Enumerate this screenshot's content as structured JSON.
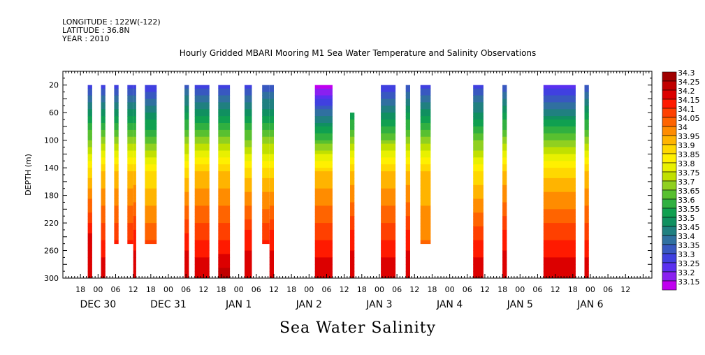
{
  "meta": {
    "longitude": "LONGITUDE : 122W(-122)",
    "latitude": "LATITUDE : 36.8N",
    "year": "YEAR : 2010"
  },
  "title": "Hourly Gridded MBARI Mooring M1 Sea Water Temperature and Salinity Observations",
  "bottom_label": "Sea Water Salinity",
  "chart_data": {
    "type": "heatmap",
    "title": "Hourly Gridded MBARI Mooring M1 Sea Water Temperature and Salinity Observations",
    "xlabel": "",
    "ylabel": "DEPTH (m)",
    "variable": "Sea Water Salinity",
    "x_unit": "hours since Dec 29 12:00 (2010)",
    "xlim": [
      0,
      201
    ],
    "ylim": [
      300,
      0
    ],
    "y_ticks": [
      20,
      60,
      100,
      140,
      180,
      220,
      260,
      300
    ],
    "x_tick_labels": [
      "18",
      "00",
      "06",
      "12",
      "18",
      "00",
      "06",
      "12",
      "18",
      "00",
      "06",
      "12",
      "18",
      "00",
      "06",
      "12",
      "18",
      "00",
      "06",
      "12",
      "18",
      "00",
      "06",
      "12",
      "18",
      "00",
      "06",
      "12",
      "18",
      "00",
      "06",
      "12"
    ],
    "day_labels": [
      "DEC 30",
      "DEC 31",
      "JAN  1",
      "JAN  2",
      "JAN  3",
      "JAN  4",
      "JAN  5",
      "JAN  6"
    ],
    "colorbar": {
      "levels": [
        34.3,
        34.25,
        34.2,
        34.15,
        34.1,
        34.05,
        34,
        33.95,
        33.9,
        33.85,
        33.8,
        33.75,
        33.7,
        33.65,
        33.6,
        33.55,
        33.5,
        33.45,
        33.4,
        33.35,
        33.3,
        33.25,
        33.2,
        33.15
      ],
      "colors": [
        "#a00000",
        "#c00000",
        "#dc0000",
        "#ff1a00",
        "#ff4000",
        "#ff6400",
        "#ff8c00",
        "#ffb400",
        "#ffd800",
        "#fff000",
        "#e8f000",
        "#c0e000",
        "#90d020",
        "#58c030",
        "#30b040",
        "#10a050",
        "#109060",
        "#208080",
        "#3070a0",
        "#3858c0",
        "#4040e0",
        "#5a30f0",
        "#8a20f0",
        "#c000f0"
      ]
    },
    "series": [
      {
        "x0": 8.5,
        "x1": 10,
        "ztop": 33.33,
        "zmid": 33.93,
        "zbot": 34.22,
        "zmax": 34.25,
        "ymin": 20,
        "ymax": 300
      },
      {
        "x0": 13,
        "x1": 14.5,
        "ztop": 33.33,
        "zmid": 33.95,
        "zbot": 34.15,
        "zmax": 34.25,
        "ymin": 20,
        "ymax": 300
      },
      {
        "x0": 17.5,
        "x1": 19,
        "ztop": 33.33,
        "zmid": 33.95,
        "zbot": 34.15,
        "zmax": 34.2,
        "ymin": 20,
        "ymax": 250
      },
      {
        "x0": 22,
        "x1": 24,
        "ztop": 33.33,
        "zmid": 33.95,
        "zbot": 34.15,
        "zmax": 34.25,
        "ymin": 20,
        "ymax": 250
      },
      {
        "x0": 24,
        "x1": 25,
        "ztop": 33.33,
        "zmid": 33.95,
        "zbot": 34.18,
        "zmax": 34.25,
        "ymin": 20,
        "ymax": 300
      },
      {
        "x0": 28,
        "x1": 32,
        "ztop": 33.3,
        "zmid": 33.9,
        "zbot": 34.1,
        "zmax": 34.15,
        "ymin": 20,
        "ymax": 250
      },
      {
        "x0": 41.5,
        "x1": 43,
        "ztop": 33.38,
        "zmid": 33.92,
        "zbot": 34.18,
        "zmax": 34.25,
        "ymin": 20,
        "ymax": 300
      },
      {
        "x0": 45,
        "x1": 50,
        "ztop": 33.33,
        "zmid": 33.95,
        "zbot": 34.15,
        "zmax": 34.25,
        "ymin": 20,
        "ymax": 300
      },
      {
        "x0": 53,
        "x1": 57,
        "ztop": 33.33,
        "zmid": 33.95,
        "zbot": 34.15,
        "zmax": 34.28,
        "ymin": 20,
        "ymax": 300
      },
      {
        "x0": 62,
        "x1": 64.5,
        "ztop": 33.33,
        "zmid": 33.93,
        "zbot": 34.18,
        "zmax": 34.25,
        "ymin": 20,
        "ymax": 300
      },
      {
        "x0": 68,
        "x1": 70.5,
        "ztop": 33.35,
        "zmid": 33.93,
        "zbot": 34.15,
        "zmax": 34.2,
        "ymin": 20,
        "ymax": 250
      },
      {
        "x0": 70.5,
        "x1": 72,
        "ztop": 33.35,
        "zmid": 33.93,
        "zbot": 34.18,
        "zmax": 34.25,
        "ymin": 20,
        "ymax": 300
      },
      {
        "x0": 86,
        "x1": 92,
        "ztop": 33.17,
        "zmid": 33.95,
        "zbot": 34.15,
        "zmax": 34.25,
        "ymin": 20,
        "ymax": 300
      },
      {
        "x0": 98,
        "x1": 99.5,
        "ztop": 33.35,
        "zmid": 33.95,
        "zbot": 34.18,
        "zmax": 34.25,
        "ymin": 60,
        "ymax": 300
      },
      {
        "x0": 108.5,
        "x1": 113.5,
        "ztop": 33.3,
        "zmid": 33.95,
        "zbot": 34.15,
        "zmax": 34.25,
        "ymin": 20,
        "ymax": 300
      },
      {
        "x0": 117,
        "x1": 118.5,
        "ztop": 33.35,
        "zmid": 33.95,
        "zbot": 34.18,
        "zmax": 34.25,
        "ymin": 20,
        "ymax": 300
      },
      {
        "x0": 122,
        "x1": 125.5,
        "ztop": 33.33,
        "zmid": 33.95,
        "zbot": 34.05,
        "zmax": 34.15,
        "ymin": 20,
        "ymax": 250
      },
      {
        "x0": 140,
        "x1": 143.5,
        "ztop": 33.33,
        "zmid": 33.9,
        "zbot": 34.15,
        "zmax": 34.25,
        "ymin": 20,
        "ymax": 300
      },
      {
        "x0": 150,
        "x1": 151.5,
        "ztop": 33.35,
        "zmid": 33.95,
        "zbot": 34.18,
        "zmax": 34.25,
        "ymin": 20,
        "ymax": 300
      },
      {
        "x0": 164,
        "x1": 175,
        "ztop": 33.28,
        "zmid": 33.93,
        "zbot": 34.15,
        "zmax": 34.25,
        "ymin": 20,
        "ymax": 300
      },
      {
        "x0": 178,
        "x1": 179.5,
        "ztop": 33.35,
        "zmid": 33.95,
        "zbot": 34.15,
        "zmax": 34.25,
        "ymin": 20,
        "ymax": 300
      }
    ]
  }
}
